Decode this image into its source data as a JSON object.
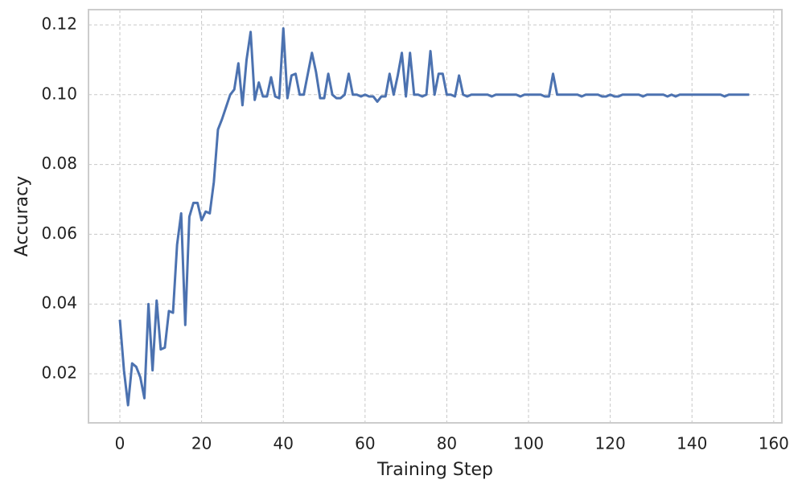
{
  "chart_data": {
    "type": "line",
    "x_label": "Training Step",
    "y_label": "Accuracy",
    "x": [
      0,
      1,
      2,
      3,
      4,
      5,
      6,
      7,
      8,
      9,
      10,
      11,
      12,
      13,
      14,
      15,
      16,
      17,
      18,
      19,
      20,
      21,
      22,
      23,
      24,
      25,
      26,
      27,
      28,
      29,
      30,
      31,
      32,
      33,
      34,
      35,
      36,
      37,
      38,
      39,
      40,
      41,
      42,
      43,
      44,
      45,
      46,
      47,
      48,
      49,
      50,
      51,
      52,
      53,
      54,
      55,
      56,
      57,
      58,
      59,
      60,
      61,
      62,
      63,
      64,
      65,
      66,
      67,
      68,
      69,
      70,
      71,
      72,
      73,
      74,
      75,
      76,
      77,
      78,
      79,
      80,
      81,
      82,
      83,
      84,
      85,
      86,
      87,
      88,
      89,
      90,
      91,
      92,
      93,
      94,
      95,
      96,
      97,
      98,
      99,
      100,
      101,
      102,
      103,
      104,
      105,
      106,
      107,
      108,
      109,
      110,
      111,
      112,
      113,
      114,
      115,
      116,
      117,
      118,
      119,
      120,
      121,
      122,
      123,
      124,
      125,
      126,
      127,
      128,
      129,
      130,
      131,
      132,
      133,
      134,
      135,
      136,
      137,
      138,
      139,
      140,
      141,
      142,
      143,
      144,
      145,
      146,
      147,
      148,
      149,
      150,
      151,
      152,
      153,
      154
    ],
    "values": [
      0.0355,
      0.021,
      0.011,
      0.023,
      0.022,
      0.019,
      0.013,
      0.04,
      0.021,
      0.041,
      0.027,
      0.0275,
      0.038,
      0.0375,
      0.057,
      0.066,
      0.034,
      0.065,
      0.069,
      0.069,
      0.064,
      0.0665,
      0.066,
      0.075,
      0.09,
      0.093,
      0.0965,
      0.1,
      0.1015,
      0.109,
      0.097,
      0.11,
      0.118,
      0.0985,
      0.1035,
      0.0995,
      0.0995,
      0.105,
      0.0995,
      0.099,
      0.119,
      0.099,
      0.1055,
      0.106,
      0.1,
      0.1,
      0.106,
      0.112,
      0.1065,
      0.099,
      0.099,
      0.106,
      0.1,
      0.099,
      0.099,
      0.1,
      0.106,
      0.1,
      0.1,
      0.0995,
      0.1,
      0.0995,
      0.0995,
      0.098,
      0.0995,
      0.0995,
      0.106,
      0.1,
      0.1055,
      0.112,
      0.0995,
      0.112,
      0.1,
      0.1,
      0.0995,
      0.1,
      0.1125,
      0.1,
      0.106,
      0.106,
      0.1,
      0.1,
      0.0995,
      0.1055,
      0.1,
      0.0995,
      0.1,
      0.1,
      0.1,
      0.1,
      0.1,
      0.0995,
      0.1,
      0.1,
      0.1,
      0.1,
      0.1,
      0.1,
      0.0995,
      0.1,
      0.1,
      0.1,
      0.1,
      0.1,
      0.0995,
      0.0995,
      0.106,
      0.1,
      0.1,
      0.1,
      0.1,
      0.1,
      0.1,
      0.0995,
      0.1,
      0.1,
      0.1,
      0.1,
      0.0995,
      0.0995,
      0.1,
      0.0995,
      0.0995,
      0.1,
      0.1,
      0.1,
      0.1,
      0.1,
      0.0995,
      0.1,
      0.1,
      0.1,
      0.1,
      0.1,
      0.0995,
      0.1,
      0.0995,
      0.1,
      0.1,
      0.1,
      0.1,
      0.1,
      0.1,
      0.1,
      0.1,
      0.1,
      0.1,
      0.1,
      0.0995,
      0.1,
      0.1,
      0.1,
      0.1,
      0.1,
      0.1
    ],
    "color": "#4c72b0",
    "xlim": [
      -7.68,
      162.0
    ],
    "xticks": [
      0,
      20,
      40,
      60,
      80,
      100,
      120,
      140,
      160
    ],
    "ylim": [
      0.00594,
      0.12438
    ],
    "yticks": [
      0.02,
      0.04,
      0.06,
      0.08,
      {
        "value": 0.1,
        "label": "0.10"
      },
      0.12
    ],
    "grid": true
  }
}
